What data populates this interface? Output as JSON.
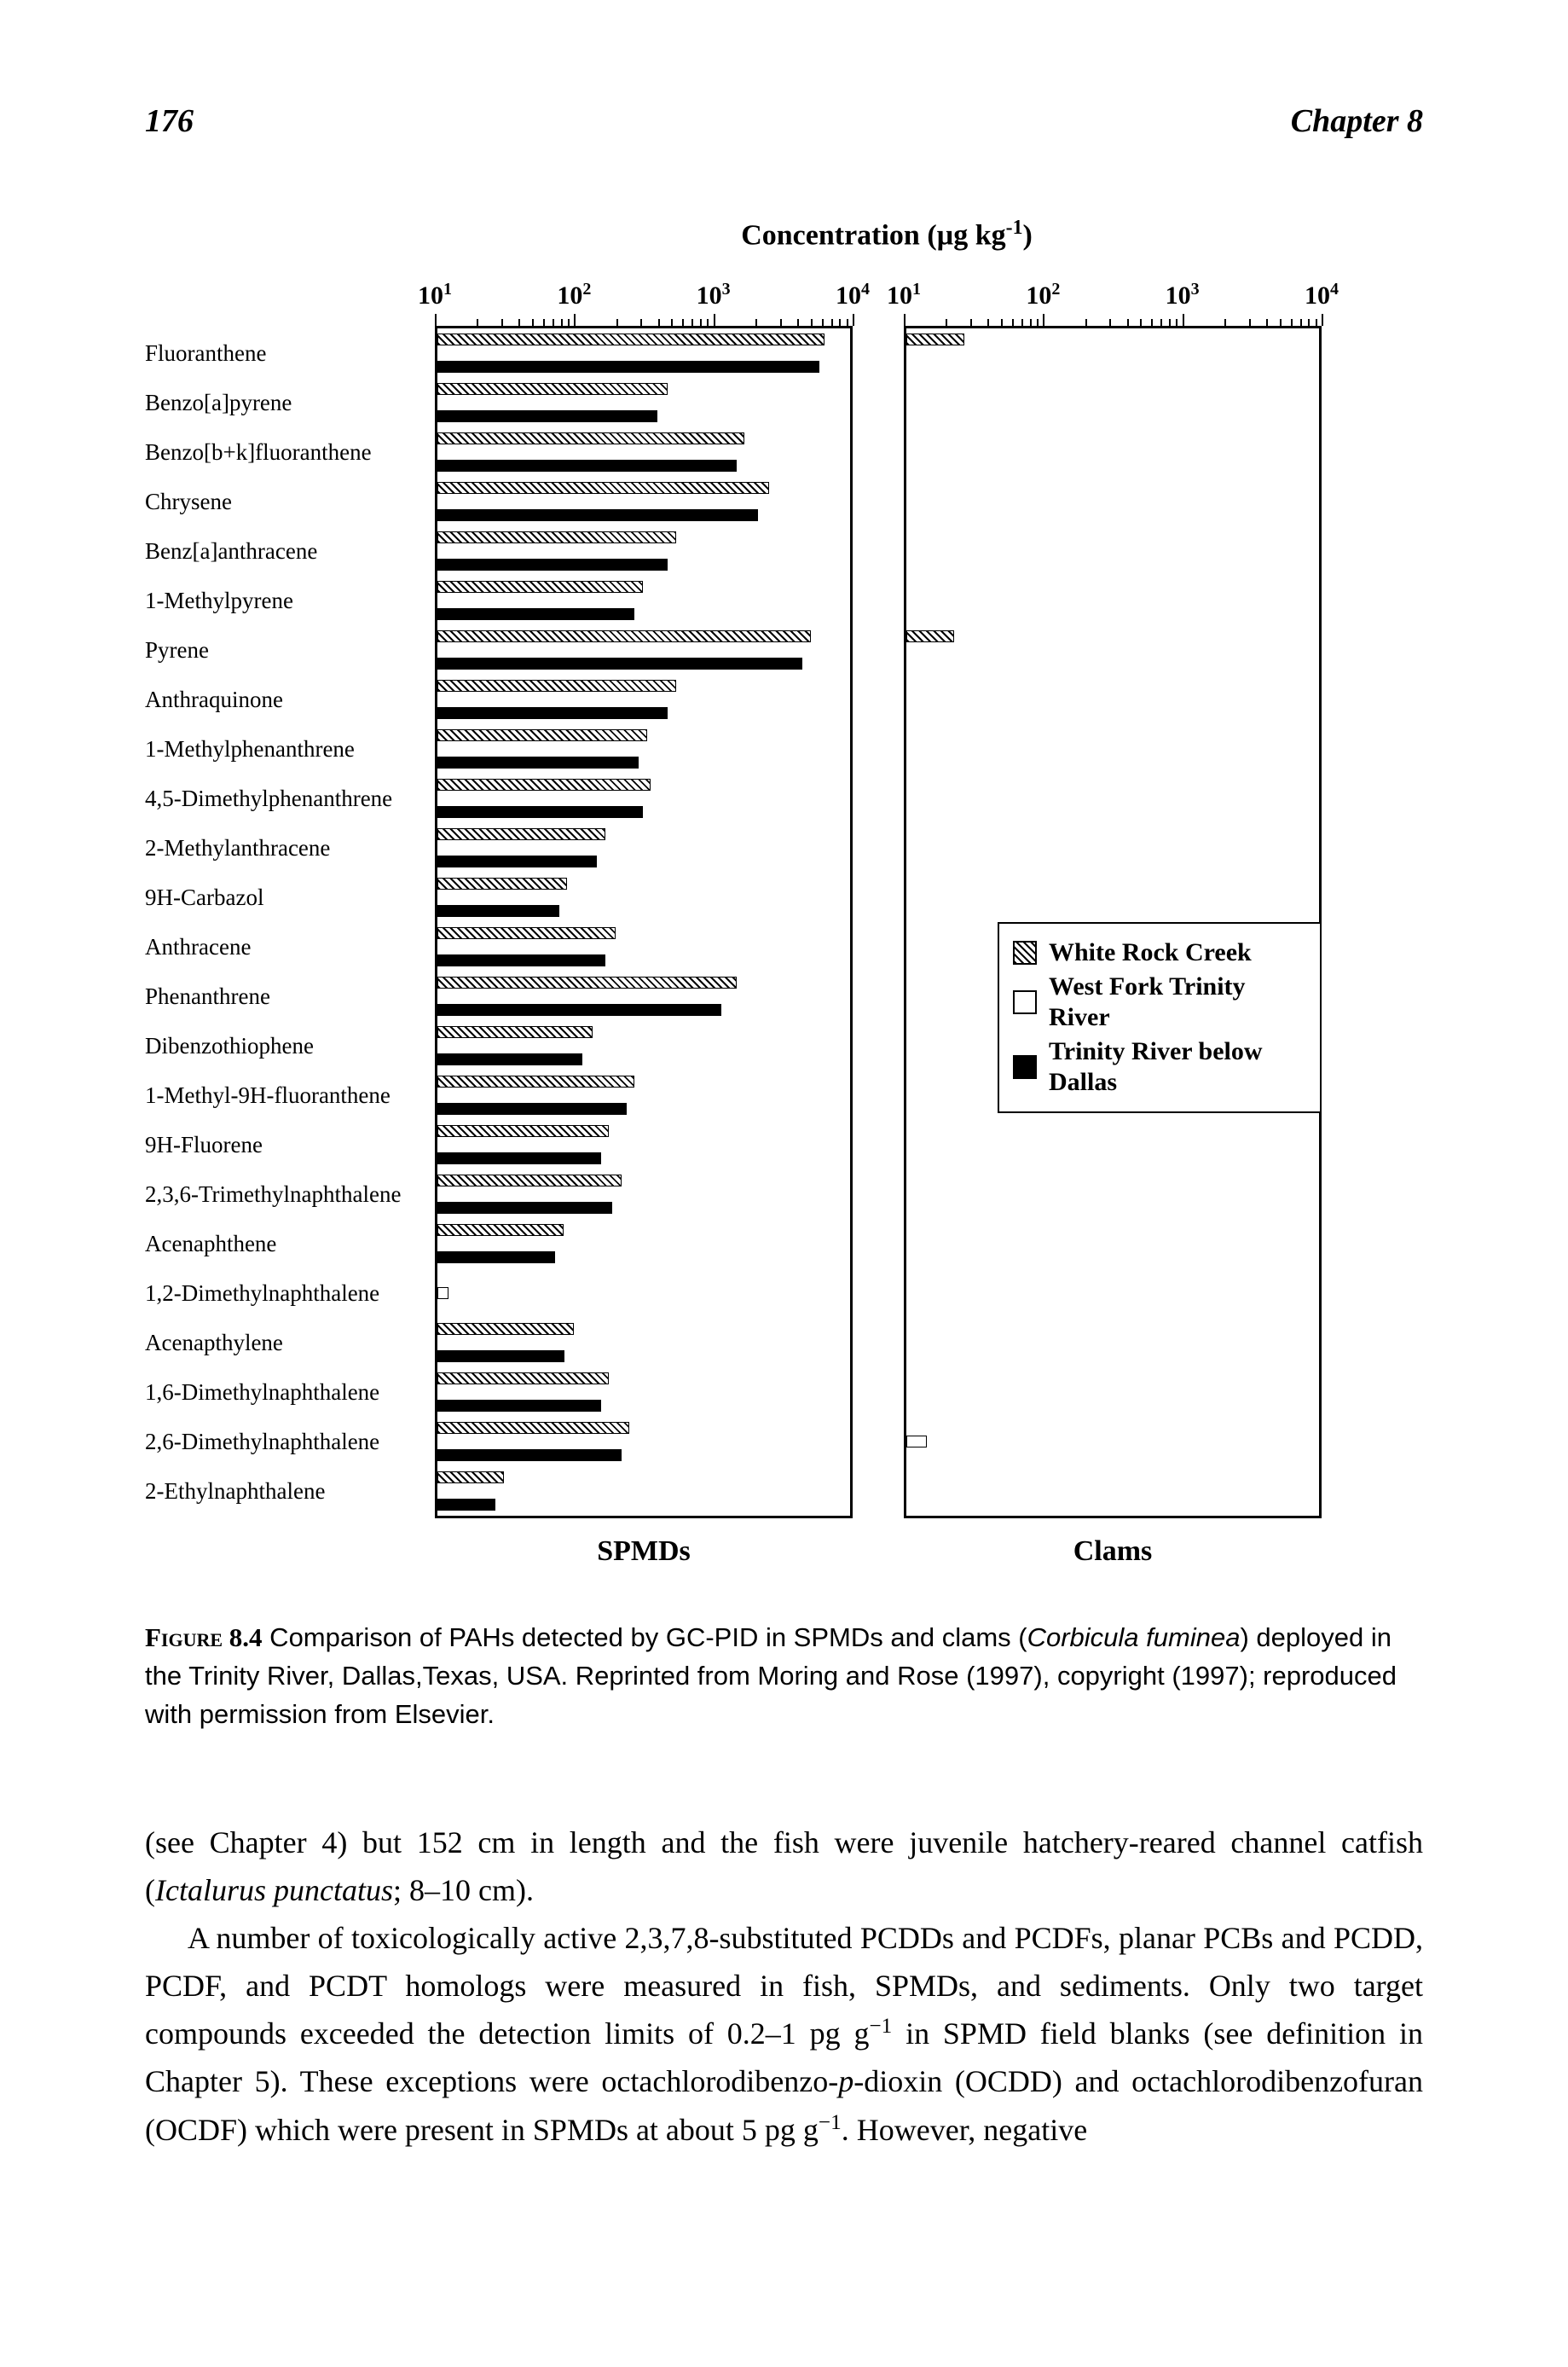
{
  "page_number": "176",
  "chapter_label": "Chapter 8",
  "chart": {
    "title_prefix": "Concentration (µg kg",
    "title_exp": "-1",
    "title_suffix": ")",
    "x_ticks": [
      10,
      100,
      1000,
      10000
    ],
    "x_tick_labels": [
      "10¹",
      "10²",
      "10³",
      "10⁴"
    ],
    "xmin": 10,
    "xmax": 10000,
    "panel_left_label": "SPMDs",
    "panel_right_label": "Clams",
    "legend": {
      "items": [
        {
          "swatch": "hatch",
          "label": "White Rock Creek"
        },
        {
          "swatch": "open",
          "label": "West Fork Trinity River"
        },
        {
          "swatch": "solid",
          "label": "Trinity River below Dallas"
        }
      ],
      "top_row_index": 12
    },
    "categories": [
      {
        "label": "Fluoranthene",
        "spmd": {
          "hatch": 6000,
          "open": null,
          "solid": 5500
        },
        "clam": {
          "hatch": 26,
          "open": null,
          "solid": null
        }
      },
      {
        "label": "Benzo[a]pyrene",
        "spmd": {
          "hatch": 450,
          "open": null,
          "solid": 380
        },
        "clam": {
          "hatch": null,
          "open": null,
          "solid": null
        }
      },
      {
        "label": "Benzo[b+k]fluoranthene",
        "spmd": {
          "hatch": 1600,
          "open": null,
          "solid": 1400
        },
        "clam": {
          "hatch": null,
          "open": null,
          "solid": null
        }
      },
      {
        "label": "Chrysene",
        "spmd": {
          "hatch": 2400,
          "open": null,
          "solid": 2000
        },
        "clam": {
          "hatch": null,
          "open": null,
          "solid": null
        }
      },
      {
        "label": "Benz[a]anthracene",
        "spmd": {
          "hatch": 520,
          "open": null,
          "solid": 450
        },
        "clam": {
          "hatch": null,
          "open": null,
          "solid": null
        }
      },
      {
        "label": "1-Methylpyrene",
        "spmd": {
          "hatch": 300,
          "open": null,
          "solid": 260
        },
        "clam": {
          "hatch": null,
          "open": null,
          "solid": null
        }
      },
      {
        "label": "Pyrene",
        "spmd": {
          "hatch": 4800,
          "open": null,
          "solid": 4200
        },
        "clam": {
          "hatch": 22,
          "open": null,
          "solid": null
        }
      },
      {
        "label": "Anthraquinone",
        "spmd": {
          "hatch": 520,
          "open": null,
          "solid": 450
        },
        "clam": {
          "hatch": null,
          "open": null,
          "solid": null
        }
      },
      {
        "label": "1-Methylphenanthrene",
        "spmd": {
          "hatch": 320,
          "open": null,
          "solid": 280
        },
        "clam": {
          "hatch": null,
          "open": null,
          "solid": null
        }
      },
      {
        "label": "4,5-Dimethylphenanthrene",
        "spmd": {
          "hatch": 340,
          "open": null,
          "solid": 300
        },
        "clam": {
          "hatch": null,
          "open": null,
          "solid": null
        }
      },
      {
        "label": "2-Methylanthracene",
        "spmd": {
          "hatch": 160,
          "open": null,
          "solid": 140
        },
        "clam": {
          "hatch": null,
          "open": null,
          "solid": null
        }
      },
      {
        "label": "9H-Carbazol",
        "spmd": {
          "hatch": 85,
          "open": null,
          "solid": 75
        },
        "clam": {
          "hatch": null,
          "open": null,
          "solid": null
        }
      },
      {
        "label": "Anthracene",
        "spmd": {
          "hatch": 190,
          "open": null,
          "solid": 160
        },
        "clam": {
          "hatch": null,
          "open": null,
          "solid": null
        }
      },
      {
        "label": "Phenanthrene",
        "spmd": {
          "hatch": 1400,
          "open": null,
          "solid": 1100
        },
        "clam": {
          "hatch": null,
          "open": null,
          "solid": null
        }
      },
      {
        "label": "Dibenzothiophene",
        "spmd": {
          "hatch": 130,
          "open": null,
          "solid": 110
        },
        "clam": {
          "hatch": null,
          "open": null,
          "solid": null
        }
      },
      {
        "label": "1-Methyl-9H-fluoranthene",
        "spmd": {
          "hatch": 260,
          "open": null,
          "solid": 230
        },
        "clam": {
          "hatch": null,
          "open": null,
          "solid": null
        }
      },
      {
        "label": "9H-Fluorene",
        "spmd": {
          "hatch": 170,
          "open": null,
          "solid": 150
        },
        "clam": {
          "hatch": null,
          "open": null,
          "solid": null
        }
      },
      {
        "label": "2,3,6-Trimethylnaphthalene",
        "spmd": {
          "hatch": 210,
          "open": null,
          "solid": 180
        },
        "clam": {
          "hatch": null,
          "open": null,
          "solid": null
        }
      },
      {
        "label": "Acenaphthene",
        "spmd": {
          "hatch": 80,
          "open": null,
          "solid": 70
        },
        "clam": {
          "hatch": null,
          "open": null,
          "solid": null
        }
      },
      {
        "label": "1,2-Dimethylnaphthalene",
        "spmd": {
          "hatch": null,
          "open": 12,
          "solid": null
        },
        "clam": {
          "hatch": null,
          "open": null,
          "solid": null
        }
      },
      {
        "label": "Acenapthylene",
        "spmd": {
          "hatch": 95,
          "open": null,
          "solid": 82
        },
        "clam": {
          "hatch": null,
          "open": null,
          "solid": null
        }
      },
      {
        "label": "1,6-Dimethylnaphthalene",
        "spmd": {
          "hatch": 170,
          "open": null,
          "solid": 150
        },
        "clam": {
          "hatch": null,
          "open": null,
          "solid": null
        }
      },
      {
        "label": "2,6-Dimethylnaphthalene",
        "spmd": {
          "hatch": 240,
          "open": null,
          "solid": 210
        },
        "clam": {
          "hatch": null,
          "open": 14,
          "solid": null
        }
      },
      {
        "label": "2-Ethylnaphthalene",
        "spmd": {
          "hatch": 30,
          "open": null,
          "solid": 26
        },
        "clam": {
          "hatch": null,
          "open": null,
          "solid": null
        }
      }
    ]
  },
  "caption": {
    "label": "Figure 8.4",
    "text_parts": [
      " Comparison of PAHs detected by GC-PID in SPMDs and clams (",
      "Corbicula fuminea",
      ") deployed in the Trinity River, Dallas,Texas, USA. Reprinted from Moring and Rose (1997), copyright (1997); reproduced with permission from Elsevier."
    ]
  },
  "body": {
    "p1_a": "(see Chapter 4) but 152 cm in length and the fish were juvenile hatchery-reared channel catfish (",
    "p1_i": "Ictalurus punctatus",
    "p1_b": "; 8–10 cm).",
    "p2_a": "A number of toxicologically active 2,3,7,8-substituted PCDDs and PCDFs, planar PCBs and PCDD, PCDF, and PCDT homologs were measured in fish, SPMDs, and sediments. Only two target compounds exceeded the detection limits of 0.2–1 pg g",
    "p2_exp1": "−1",
    "p2_b": " in SPMD field blanks (see definition in Chapter 5). These exceptions were octachlorodibenzo-",
    "p2_i": "p",
    "p2_c": "-dioxin (OCDD) and octachlorodibenzofuran (OCDF) which were present in SPMDs at about 5 pg g",
    "p2_exp2": "−1",
    "p2_d": ". However, negative"
  }
}
